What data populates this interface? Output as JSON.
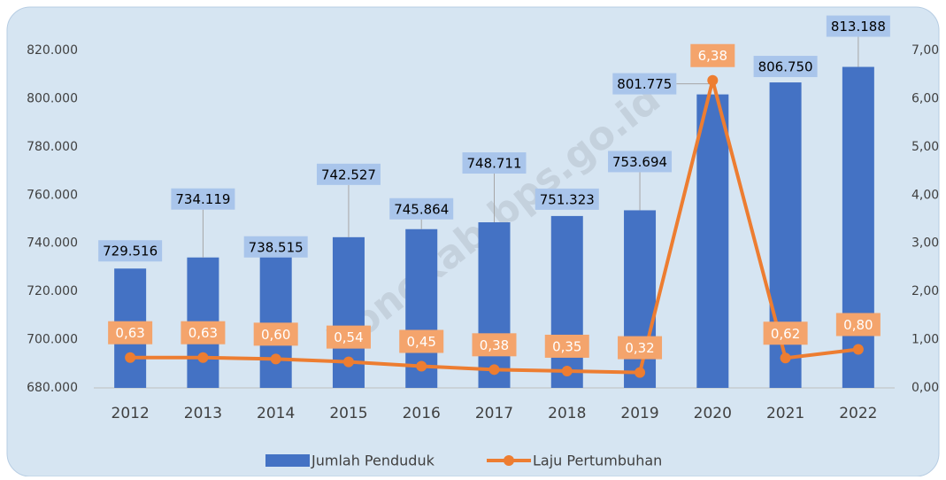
{
  "chart_data": {
    "type": "bar_line",
    "categories": [
      "2012",
      "2013",
      "2014",
      "2015",
      "2016",
      "2017",
      "2018",
      "2019",
      "2020",
      "2021",
      "2022"
    ],
    "series": [
      {
        "name": "Jumlah Penduduk",
        "type": "bar",
        "color": "#4472c4",
        "values": [
          729516,
          734119,
          738515,
          742527,
          745864,
          748711,
          751323,
          753694,
          801775,
          806750,
          813188
        ],
        "value_labels": [
          "729.516",
          "734.119",
          "738.515",
          "742.527",
          "745.864",
          "748.711",
          "751.323",
          "753.694",
          "801.775",
          "806.750",
          "813.188"
        ]
      },
      {
        "name": "Laju Pertumbuhan",
        "type": "line",
        "axis": "y2",
        "color": "#ed7d31",
        "values": [
          0.63,
          0.63,
          0.6,
          0.54,
          0.45,
          0.38,
          0.35,
          0.32,
          6.38,
          0.62,
          0.8
        ],
        "value_labels": [
          "0,63",
          "0,63",
          "0,60",
          "0,54",
          "0,45",
          "0,38",
          "0,35",
          "0,32",
          "6,38",
          "0,62",
          "0,80"
        ]
      }
    ],
    "ylim": [
      680000,
      820000
    ],
    "yticks": [
      {
        "value": 680000,
        "label": "680.000"
      },
      {
        "value": 700000,
        "label": "700.000"
      },
      {
        "value": 720000,
        "label": "720.000"
      },
      {
        "value": 740000,
        "label": "740.000"
      },
      {
        "value": 760000,
        "label": "760.000"
      },
      {
        "value": 780000,
        "label": "780.000"
      },
      {
        "value": 800000,
        "label": "800.000"
      },
      {
        "value": 820000,
        "label": "820.000"
      }
    ],
    "y2lim": [
      0,
      7
    ],
    "y2ticks": [
      {
        "value": 0,
        "label": "0,00"
      },
      {
        "value": 1,
        "label": "1,00"
      },
      {
        "value": 2,
        "label": "2,00"
      },
      {
        "value": 3,
        "label": "3,00"
      },
      {
        "value": 4,
        "label": "4,00"
      },
      {
        "value": 5,
        "label": "5,00"
      },
      {
        "value": 6,
        "label": "6,00"
      },
      {
        "value": 7,
        "label": "7,00"
      }
    ],
    "watermark": "bonekab.bps.go.id"
  }
}
